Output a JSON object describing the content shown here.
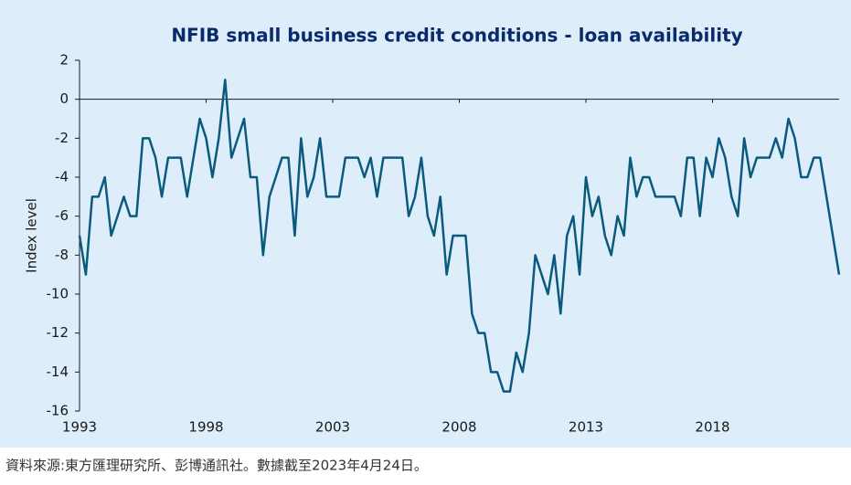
{
  "chart_data": {
    "type": "line",
    "title": "NFIB small business credit conditions - loan availability",
    "y_label": "Index level",
    "source": "資料來源:東方匯理研究所、彭博通訊社。數據截至2023年4月24日。",
    "x": [
      1993,
      1993.25,
      1993.5,
      1993.75,
      1994,
      1994.25,
      1994.5,
      1994.75,
      1995,
      1995.25,
      1995.5,
      1995.75,
      1996,
      1996.25,
      1996.5,
      1996.75,
      1997,
      1997.25,
      1997.5,
      1997.75,
      1998,
      1998.25,
      1998.5,
      1998.75,
      1999,
      1999.25,
      1999.5,
      1999.75,
      2000,
      2000.25,
      2000.5,
      2000.75,
      2001,
      2001.25,
      2001.5,
      2001.75,
      2002,
      2002.25,
      2002.5,
      2002.75,
      2003,
      2003.25,
      2003.5,
      2003.75,
      2004,
      2004.25,
      2004.5,
      2004.75,
      2005,
      2005.25,
      2005.5,
      2005.75,
      2006,
      2006.25,
      2006.5,
      2006.75,
      2007,
      2007.25,
      2007.5,
      2007.75,
      2008,
      2008.25,
      2008.5,
      2008.75,
      2009,
      2009.25,
      2009.5,
      2009.75,
      2010,
      2010.25,
      2010.5,
      2010.75,
      2011,
      2011.25,
      2011.5,
      2011.75,
      2012,
      2012.25,
      2012.5,
      2012.75,
      2013,
      2013.25,
      2013.5,
      2013.75,
      2014,
      2014.25,
      2014.5,
      2014.75,
      2015,
      2015.25,
      2015.5,
      2015.75,
      2016,
      2016.25,
      2016.5,
      2016.75,
      2017,
      2017.25,
      2017.5,
      2017.75,
      2018,
      2018.25,
      2018.5,
      2018.75,
      2019,
      2019.25,
      2019.5,
      2019.75,
      2020,
      2020.25,
      2020.5,
      2020.75,
      2021,
      2021.25,
      2021.5,
      2021.75,
      2022,
      2022.25,
      2022.5,
      2022.75,
      2023
    ],
    "series": [
      {
        "name": "Loan availability",
        "color": "#0b5a7e",
        "values": [
          -7,
          -9,
          -5,
          -5,
          -4,
          -7,
          -6,
          -5,
          -6,
          -6,
          -2,
          -2,
          -3,
          -5,
          -3,
          -3,
          -3,
          -5,
          -3,
          -1,
          -2,
          -4,
          -2,
          1,
          -3,
          -2,
          -1,
          -4,
          -4,
          -8,
          -5,
          -4,
          -3,
          -3,
          -7,
          -2,
          -5,
          -4,
          -2,
          -5,
          -5,
          -5,
          -3,
          -3,
          -3,
          -4,
          -3,
          -5,
          -3,
          -3,
          -3,
          -3,
          -6,
          -5,
          -3,
          -6,
          -7,
          -5,
          -9,
          -7,
          -7,
          -7,
          -11,
          -12,
          -12,
          -14,
          -14,
          -15,
          -15,
          -13,
          -14,
          -12,
          -8,
          -9,
          -10,
          -8,
          -11,
          -7,
          -6,
          -9,
          -4,
          -6,
          -5,
          -7,
          -8,
          -6,
          -7,
          -3,
          -5,
          -4,
          -4,
          -5,
          -5,
          -5,
          -5,
          -6,
          -3,
          -3,
          -6,
          -3,
          -4,
          -2,
          -3,
          -5,
          -6,
          -2,
          -4,
          -3,
          -3,
          -3,
          -2,
          -3,
          -1,
          -2,
          -4,
          -4,
          -3,
          -3,
          -5,
          -7,
          -9
        ]
      }
    ],
    "xlim": [
      1993,
      2023
    ],
    "xticks": [
      1993,
      1998,
      2003,
      2008,
      2013,
      2018
    ],
    "ylim": [
      -16,
      2
    ],
    "yticks": [
      2,
      0,
      -2,
      -4,
      -6,
      -8,
      -10,
      -12,
      -14,
      -16
    ]
  }
}
